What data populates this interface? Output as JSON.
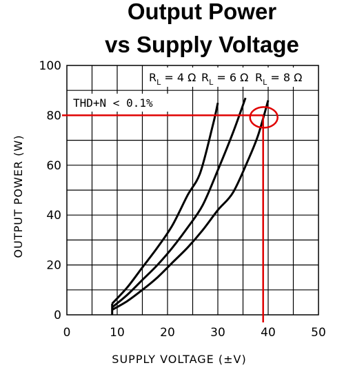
{
  "chart_data": {
    "type": "line",
    "title_line1": "Output Power",
    "title_line2": "vs Supply Voltage",
    "xlabel": "SUPPLY VOLTAGE (±V)",
    "ylabel": "OUTPUT POWER (W)",
    "xlim": [
      0,
      50
    ],
    "ylim": [
      0,
      100
    ],
    "x_ticks": [
      0,
      10,
      20,
      30,
      40,
      50
    ],
    "x_tick_labels": [
      "0",
      "10",
      "20",
      "30",
      "40",
      "50"
    ],
    "y_ticks": [
      0,
      20,
      40,
      60,
      80,
      100
    ],
    "y_tick_labels": [
      "0",
      "20",
      "40",
      "60",
      "80",
      "100"
    ],
    "grid_step_x": 5,
    "grid_step_y": 10,
    "grid": true,
    "legend_placement": "top-right",
    "annotation": "THD+N < 0.1%",
    "series": [
      {
        "name": "RL = 4Ω",
        "label_main": "R",
        "label_sub": "L",
        "label_tail": " = 4 Ω",
        "x": [
          9,
          12,
          15,
          18,
          21,
          24,
          26.5,
          29,
          30
        ],
        "y": [
          4.5,
          11,
          19,
          27,
          36,
          48,
          57,
          76,
          85
        ]
      },
      {
        "name": "RL = 6Ω",
        "label_main": "R",
        "label_sub": "L",
        "label_tail": " = 6 Ω",
        "x": [
          9,
          12,
          15,
          18,
          21,
          24,
          27,
          30,
          33,
          35.5
        ],
        "y": [
          3,
          8,
          14,
          20,
          27,
          35,
          44,
          58,
          73,
          87
        ]
      },
      {
        "name": "RL = 8Ω",
        "label_main": "R",
        "label_sub": "L",
        "label_tail": " = 8 Ω",
        "x": [
          9,
          12,
          15,
          18,
          21,
          24,
          27,
          30,
          33,
          36,
          38,
          40
        ],
        "y": [
          2,
          5.5,
          10,
          15,
          21,
          27,
          34,
          42,
          49,
          62,
          72,
          86
        ]
      }
    ],
    "highlight": {
      "x": 39,
      "y": 80,
      "color": "#e00000"
    },
    "colors": {
      "curve": "#000000",
      "grid": "#000000",
      "highlight": "#e00000"
    }
  }
}
